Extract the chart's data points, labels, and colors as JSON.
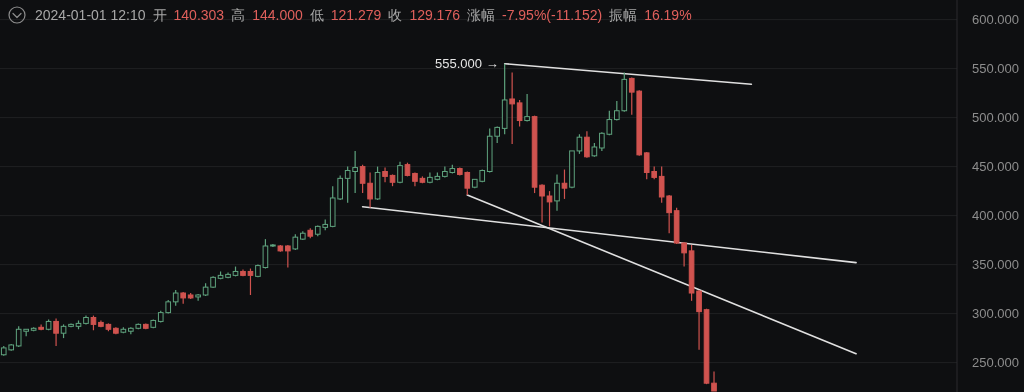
{
  "chart_data": {
    "type": "candlestick",
    "categories": [
      null,
      null,
      null,
      null,
      null,
      null,
      null,
      null,
      null,
      null,
      null,
      null,
      null,
      null,
      null,
      null,
      null,
      null,
      null,
      null,
      null,
      null,
      null,
      null,
      null,
      null,
      null,
      null,
      null,
      null,
      null,
      null,
      null,
      null,
      null,
      null,
      null,
      null,
      null,
      null,
      null,
      null,
      null,
      null,
      null,
      null,
      null,
      null,
      null,
      null,
      null,
      null,
      null,
      null,
      null,
      null,
      null,
      null,
      null,
      null,
      null,
      null,
      null,
      null,
      null,
      null,
      null,
      null,
      null,
      null,
      null,
      null,
      null,
      null,
      null,
      null,
      null,
      null,
      null,
      null,
      null,
      null,
      null,
      null,
      null,
      null,
      null,
      null,
      null,
      null,
      null,
      null,
      null,
      null,
      null,
      null,
      null,
      null,
      null,
      null,
      null,
      null,
      null,
      null,
      null,
      null,
      null,
      null,
      null,
      null,
      null,
      null,
      null,
      null,
      null,
      null,
      null,
      null,
      null,
      null,
      null,
      null,
      null,
      null,
      null,
      null,
      null,
      null
    ],
    "ohlc": [
      [
        258,
        267,
        257,
        265
      ],
      [
        263,
        269,
        262,
        268
      ],
      [
        267,
        287,
        266,
        284
      ],
      [
        282,
        284,
        277,
        284
      ],
      [
        283,
        286,
        282,
        285
      ],
      [
        286,
        289,
        283,
        284
      ],
      [
        284,
        294,
        283,
        292
      ],
      [
        292,
        295,
        267,
        280
      ],
      [
        280,
        289,
        275,
        287
      ],
      [
        287,
        290,
        286,
        289
      ],
      [
        287,
        293,
        284,
        290
      ],
      [
        290,
        298,
        289,
        296
      ],
      [
        296,
        298,
        283,
        289
      ],
      [
        291,
        293,
        286,
        287
      ],
      [
        289,
        290,
        282,
        284
      ],
      [
        285,
        286,
        279,
        280
      ],
      [
        281,
        286,
        280,
        284
      ],
      [
        282,
        286,
        279,
        285
      ],
      [
        285,
        290,
        284,
        289
      ],
      [
        289,
        290,
        284,
        285
      ],
      [
        286,
        294,
        285,
        293
      ],
      [
        292,
        303,
        291,
        301
      ],
      [
        301,
        314,
        300,
        312
      ],
      [
        312,
        324,
        308,
        321
      ],
      [
        321,
        322,
        310,
        316
      ],
      [
        319,
        321,
        315,
        316
      ],
      [
        317,
        320,
        313,
        319
      ],
      [
        319,
        331,
        318,
        327
      ],
      [
        327,
        338,
        326,
        337
      ],
      [
        336,
        343,
        335,
        339
      ],
      [
        337,
        342,
        336,
        340
      ],
      [
        339,
        348,
        338,
        343
      ],
      [
        343,
        345,
        338,
        339
      ],
      [
        343,
        346,
        319,
        339
      ],
      [
        338,
        350,
        337,
        349
      ],
      [
        347,
        376,
        346,
        369
      ],
      [
        369,
        371,
        368,
        370
      ],
      [
        369,
        370,
        363,
        364
      ],
      [
        369,
        370,
        347,
        364
      ],
      [
        366,
        381,
        365,
        378
      ],
      [
        376,
        384,
        375,
        382
      ],
      [
        385,
        387,
        377,
        379
      ],
      [
        381,
        390,
        379,
        389
      ],
      [
        388,
        396,
        385,
        391
      ],
      [
        389,
        430,
        388,
        418
      ],
      [
        417,
        441,
        416,
        438
      ],
      [
        438,
        450,
        413,
        446
      ],
      [
        445,
        466,
        423,
        449
      ],
      [
        450,
        452,
        423,
        433
      ],
      [
        433,
        444,
        408,
        417
      ],
      [
        417,
        450,
        416,
        444
      ],
      [
        445,
        449,
        434,
        440
      ],
      [
        441,
        442,
        430,
        434
      ],
      [
        434,
        455,
        433,
        451
      ],
      [
        452,
        454,
        440,
        441
      ],
      [
        443,
        444,
        430,
        435
      ],
      [
        438,
        440,
        433,
        434
      ],
      [
        434,
        444,
        433,
        439
      ],
      [
        437,
        444,
        436,
        440
      ],
      [
        440,
        450,
        439,
        445
      ],
      [
        444,
        452,
        443,
        448
      ],
      [
        448,
        449,
        441,
        442
      ],
      [
        444,
        445,
        421,
        428
      ],
      [
        429,
        437,
        428,
        437
      ],
      [
        435,
        447,
        434,
        446
      ],
      [
        445,
        489,
        444,
        481
      ],
      [
        481,
        491,
        474,
        490
      ],
      [
        489,
        555,
        483,
        518
      ],
      [
        519,
        546,
        473,
        514
      ],
      [
        515,
        518,
        491,
        497
      ],
      [
        497,
        524,
        496,
        501
      ],
      [
        501,
        502,
        423,
        429
      ],
      [
        431,
        432,
        393,
        420
      ],
      [
        420,
        425,
        389,
        414
      ],
      [
        415,
        442,
        405,
        433
      ],
      [
        433,
        447,
        417,
        428
      ],
      [
        429,
        466,
        428,
        466
      ],
      [
        466,
        483,
        463,
        480
      ],
      [
        480,
        486,
        459,
        460
      ],
      [
        461,
        474,
        460,
        470
      ],
      [
        469,
        485,
        466,
        484
      ],
      [
        483,
        507,
        482,
        498
      ],
      [
        498,
        517,
        497,
        507
      ],
      [
        507,
        546,
        506,
        539
      ],
      [
        540,
        541,
        503,
        526
      ],
      [
        527,
        528,
        461,
        462
      ],
      [
        464,
        465,
        437,
        444
      ],
      [
        445,
        450,
        437,
        439
      ],
      [
        440,
        450,
        413,
        419
      ],
      [
        420,
        421,
        382,
        403
      ],
      [
        405,
        408,
        371,
        372
      ],
      [
        372,
        373,
        348,
        362
      ],
      [
        364,
        370,
        313,
        321
      ],
      [
        323,
        324,
        263,
        302
      ],
      [
        304,
        305,
        228,
        229
      ],
      [
        229,
        241,
        221,
        221
      ],
      null,
      null,
      null,
      null,
      null,
      null,
      null,
      null,
      null,
      null,
      null,
      null,
      null,
      null,
      null,
      null,
      null,
      null,
      null,
      null,
      null,
      null,
      null,
      null,
      null,
      null,
      null,
      null,
      null,
      null,
      null,
      null
    ],
    "colors": [
      "#5fa37e",
      "#5fa37e",
      "#5fa37e",
      "#5fa37e",
      "#5fa37e",
      "#d0534f",
      "#5fa37e",
      "#d0534f",
      "#5fa37e",
      "#5fa37e",
      "#5fa37e",
      "#5fa37e",
      "#d0534f",
      "#d0534f",
      "#d0534f",
      "#d0534f",
      "#5fa37e",
      "#5fa37e",
      "#5fa37e",
      "#d0534f",
      "#5fa37e",
      "#5fa37e",
      "#5fa37e",
      "#5fa37e",
      "#d0534f",
      "#d0534f",
      "#5fa37e",
      "#5fa37e",
      "#5fa37e",
      "#5fa37e",
      "#5fa37e",
      "#5fa37e",
      "#d0534f",
      "#d0534f",
      "#5fa37e",
      "#5fa37e",
      "#5fa37e",
      "#d0534f",
      "#d0534f",
      "#5fa37e",
      "#5fa37e",
      "#d0534f",
      "#5fa37e",
      "#5fa37e",
      "#5fa37e",
      "#5fa37e",
      "#5fa37e",
      "#5fa37e",
      "#d0534f",
      "#d0534f",
      "#5fa37e",
      "#d0534f",
      "#d0534f",
      "#5fa37e",
      "#d0534f",
      "#d0534f",
      "#d0534f",
      "#5fa37e",
      "#5fa37e",
      "#5fa37e",
      "#5fa37e",
      "#d0534f",
      "#d0534f",
      "#5fa37e",
      "#5fa37e",
      "#5fa37e",
      "#5fa37e",
      "#5fa37e",
      "#d0534f",
      "#d0534f",
      "#5fa37e",
      "#d0534f",
      "#d0534f",
      "#d0534f",
      "#5fa37e",
      "#d0534f",
      "#5fa37e",
      "#5fa37e",
      "#d0534f",
      "#5fa37e",
      "#5fa37e",
      "#5fa37e",
      "#5fa37e",
      "#5fa37e",
      "#d0534f",
      "#d0534f",
      "#d0534f",
      "#d0534f",
      "#d0534f",
      "#d0534f",
      "#d0534f",
      "#d0534f",
      "#d0534f",
      "#d0534f",
      "#d0534f",
      "#d0534f",
      null,
      null,
      null,
      null,
      null,
      null,
      null,
      null,
      null,
      null,
      null,
      null,
      null,
      null,
      null,
      null,
      null,
      null,
      null,
      null,
      null,
      null,
      null,
      null,
      null,
      null,
      null,
      null,
      null,
      null,
      null,
      null
    ],
    "series": [
      {
        "type": "line",
        "color": "#e0e0e0",
        "values": [
          null,
          null,
          null,
          null,
          null,
          null,
          null,
          null,
          null,
          null,
          null,
          null,
          null,
          null,
          null,
          null,
          null,
          null,
          null,
          null,
          null,
          null,
          null,
          null,
          null,
          null,
          null,
          null,
          null,
          null,
          null,
          null,
          null,
          null,
          null,
          null,
          null,
          null,
          null,
          null,
          null,
          null,
          null,
          null,
          null,
          null,
          null,
          null,
          null,
          null,
          null,
          null,
          null,
          null,
          null,
          null,
          null,
          null,
          null,
          null,
          null,
          null,
          null,
          null,
          null,
          null,
          null,
          555,
          null,
          null,
          null,
          null,
          null,
          null,
          null,
          null,
          null,
          null,
          null,
          null,
          null,
          null,
          null,
          null,
          null,
          null,
          null,
          null,
          null,
          null,
          null,
          null,
          null,
          null,
          null,
          null,
          null,
          null,
          null,
          null,
          534,
          null,
          null,
          null,
          null,
          null,
          null,
          null,
          null,
          null,
          null,
          null,
          null,
          null,
          null,
          null,
          null,
          null,
          null,
          null,
          null,
          null,
          null,
          null,
          null,
          null,
          null,
          null
        ]
      },
      {
        "type": "line",
        "color": "#e0e0e0",
        "values": [
          null,
          null,
          null,
          null,
          null,
          null,
          null,
          null,
          null,
          null,
          null,
          null,
          null,
          null,
          null,
          null,
          null,
          null,
          null,
          null,
          null,
          null,
          null,
          null,
          null,
          null,
          null,
          null,
          null,
          null,
          null,
          null,
          null,
          null,
          null,
          null,
          null,
          null,
          null,
          null,
          null,
          null,
          null,
          null,
          null,
          null,
          null,
          null,
          409,
          null,
          null,
          null,
          null,
          null,
          null,
          null,
          null,
          null,
          null,
          null,
          null,
          null,
          null,
          null,
          null,
          null,
          null,
          null,
          null,
          null,
          null,
          null,
          null,
          null,
          null,
          null,
          null,
          null,
          null,
          null,
          null,
          null,
          null,
          null,
          null,
          null,
          null,
          null,
          null,
          null,
          null,
          null,
          null,
          null,
          null,
          null,
          null,
          null,
          null,
          null,
          null,
          null,
          null,
          null,
          null,
          null,
          null,
          null,
          null,
          null,
          null,
          null,
          null,
          null,
          352,
          null,
          null,
          null,
          null,
          null,
          null,
          null,
          null,
          null,
          null,
          null,
          null,
          null
        ]
      },
      {
        "type": "line",
        "color": "#e0e0e0",
        "values": [
          null,
          null,
          null,
          null,
          null,
          null,
          null,
          null,
          null,
          null,
          null,
          null,
          null,
          null,
          null,
          null,
          null,
          null,
          null,
          null,
          null,
          null,
          null,
          null,
          null,
          null,
          null,
          null,
          null,
          null,
          null,
          null,
          null,
          null,
          null,
          null,
          null,
          null,
          null,
          null,
          null,
          null,
          null,
          null,
          null,
          null,
          null,
          null,
          null,
          null,
          null,
          null,
          null,
          null,
          null,
          null,
          null,
          null,
          null,
          null,
          null,
          null,
          421,
          null,
          null,
          null,
          null,
          null,
          null,
          null,
          null,
          null,
          null,
          null,
          null,
          null,
          null,
          null,
          null,
          null,
          null,
          null,
          null,
          null,
          null,
          null,
          null,
          null,
          null,
          null,
          null,
          null,
          null,
          null,
          null,
          null,
          null,
          null,
          null,
          null,
          null,
          null,
          null,
          null,
          null,
          null,
          null,
          null,
          null,
          null,
          null,
          null,
          null,
          null,
          259,
          null,
          null,
          null,
          null,
          null,
          null,
          null,
          null,
          null,
          null,
          null,
          null,
          null
        ]
      }
    ],
    "ylim": [
      220,
      620
    ],
    "yticks": [
      {
        "value": 250,
        "label": "250.000"
      },
      {
        "value": 300,
        "label": "300.000"
      },
      {
        "value": 350,
        "label": "350.000"
      },
      {
        "value": 400,
        "label": "400.000"
      },
      {
        "value": 450,
        "label": "450.000"
      },
      {
        "value": 500,
        "label": "500.000"
      },
      {
        "value": 550,
        "label": "550.000"
      },
      {
        "value": 600,
        "label": "600.000"
      }
    ],
    "tick_labels": "y",
    "grid": "y",
    "annotations": [
      "2024-01-01 12:10",
      "开",
      "140.303",
      "高",
      "144.000",
      "低",
      "121.279",
      "收",
      "129.176",
      "涨幅",
      "-7.95%(-11.152)",
      "振幅",
      "16.19%",
      "555.000 →"
    ]
  }
}
